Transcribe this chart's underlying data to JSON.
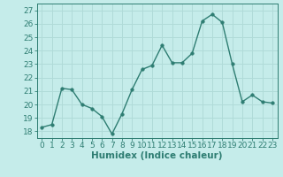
{
  "x": [
    0,
    1,
    2,
    3,
    4,
    5,
    6,
    7,
    8,
    9,
    10,
    11,
    12,
    13,
    14,
    15,
    16,
    17,
    18,
    19,
    20,
    21,
    22,
    23
  ],
  "y": [
    18.3,
    18.5,
    21.2,
    21.1,
    20.0,
    19.7,
    19.1,
    17.8,
    19.3,
    21.1,
    22.6,
    22.9,
    24.4,
    23.1,
    23.1,
    23.8,
    26.2,
    26.7,
    26.1,
    23.0,
    20.2,
    20.7,
    20.2,
    20.1
  ],
  "xlabel": "Humidex (Indice chaleur)",
  "ylim": [
    17.5,
    27.5
  ],
  "xlim": [
    -0.5,
    23.5
  ],
  "yticks": [
    18,
    19,
    20,
    21,
    22,
    23,
    24,
    25,
    26,
    27
  ],
  "xticks": [
    0,
    1,
    2,
    3,
    4,
    5,
    6,
    7,
    8,
    9,
    10,
    11,
    12,
    13,
    14,
    15,
    16,
    17,
    18,
    19,
    20,
    21,
    22,
    23
  ],
  "xtick_labels": [
    "0",
    "1",
    "2",
    "3",
    "4",
    "5",
    "6",
    "7",
    "8",
    "9",
    "10",
    "11",
    "12",
    "13",
    "14",
    "15",
    "16",
    "17",
    "18",
    "19",
    "20",
    "21",
    "22",
    "23"
  ],
  "line_color": "#2e7d72",
  "marker_color": "#2e7d72",
  "bg_color": "#c5ecea",
  "grid_color": "#b0dbd8",
  "tick_color": "#2e7d72",
  "label_color": "#2e7d72",
  "xlabel_fontsize": 7.5,
  "tick_fontsize": 6.5,
  "marker_size": 2.5,
  "line_width": 1.0
}
